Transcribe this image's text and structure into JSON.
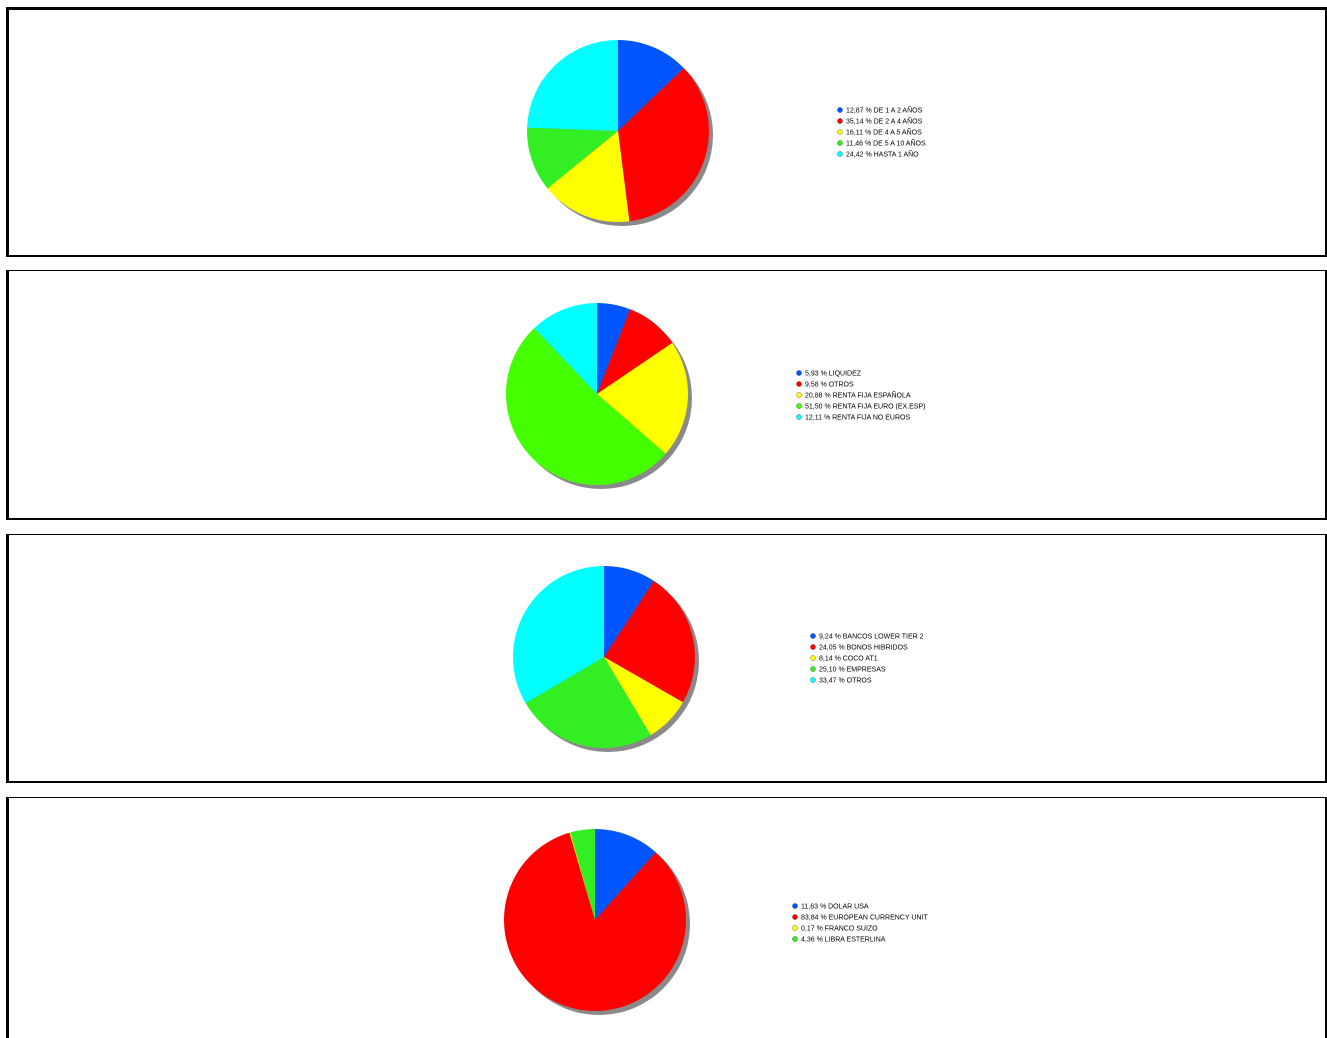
{
  "chart_data": [
    {
      "type": "pie",
      "slices": [
        {
          "label": "12,87 % DE 1 A 2 AÑOS",
          "value": 12.87,
          "color": "#0055ff"
        },
        {
          "label": "35,14 % DE 2 A 4 AÑOS",
          "value": 35.14,
          "color": "#ff0000"
        },
        {
          "label": "16,11 % DE 4 A 5 AÑOS",
          "value": 16.11,
          "color": "#ffff00"
        },
        {
          "label": "11,46 % DE 5 A 10 AÑOS",
          "value": 11.46,
          "color": "#33ee22"
        },
        {
          "label": "24,42 % HASTA 1 AÑO",
          "value": 24.42,
          "color": "#00ffff"
        }
      ]
    },
    {
      "type": "pie",
      "slices": [
        {
          "label": "5,93 % LIQUIDEZ",
          "value": 5.93,
          "color": "#0055ff"
        },
        {
          "label": "9,58 % OTROS",
          "value": 9.58,
          "color": "#ff0000"
        },
        {
          "label": "20,88 % RENTA FIJA ESPAÑOLA",
          "value": 20.88,
          "color": "#ffff00"
        },
        {
          "label": "51,50 % RENTA FIJA EURO (EX.ESP)",
          "value": 51.5,
          "color": "#44ff00"
        },
        {
          "label": "12,11 % RENTA FIJA NO EUROS",
          "value": 12.11,
          "color": "#00ffff"
        }
      ]
    },
    {
      "type": "pie",
      "slices": [
        {
          "label": "9,24 % BANCOS LOWER TIER 2",
          "value": 9.24,
          "color": "#0055ff"
        },
        {
          "label": "24,05 % BONOS HIBRIDOS",
          "value": 24.05,
          "color": "#ff0000"
        },
        {
          "label": "8,14 % COCO AT1",
          "value": 8.14,
          "color": "#ffff00"
        },
        {
          "label": "25,10 % EMPRESAS",
          "value": 25.1,
          "color": "#33ee22"
        },
        {
          "label": "33,47 % OTROS",
          "value": 33.47,
          "color": "#00ffff"
        }
      ]
    },
    {
      "type": "pie",
      "slices": [
        {
          "label": "11,63 % DOLAR USA",
          "value": 11.63,
          "color": "#0055ff"
        },
        {
          "label": "83,84 % EUROPEAN CURRENCY UNIT",
          "value": 83.84,
          "color": "#ff0000"
        },
        {
          "label": "0,17 % FRANCO SUIZO",
          "value": 0.17,
          "color": "#ffff00"
        },
        {
          "label": "4,36 % LIBRA ESTERLINA",
          "value": 4.36,
          "color": "#33ee22"
        }
      ]
    }
  ]
}
